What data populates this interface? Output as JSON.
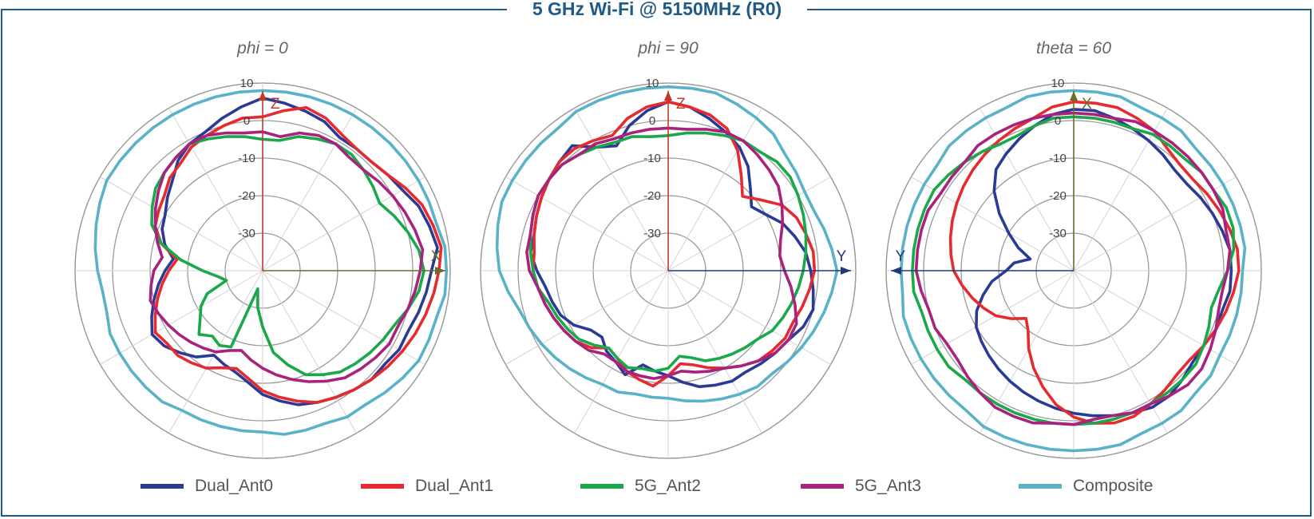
{
  "title": "5 GHz Wi-Fi @ 5150MHz (R0)",
  "legend": [
    {
      "name": "Dual_Ant0",
      "color": "#2b3b93"
    },
    {
      "name": "Dual_Ant1",
      "color": "#e52b2f"
    },
    {
      "name": "5G_Ant2",
      "color": "#1aa84a"
    },
    {
      "name": "5G_Ant3",
      "color": "#a8237e"
    },
    {
      "name": "Composite",
      "color": "#5ab2c8"
    }
  ],
  "chart_data": [
    {
      "type": "polar",
      "title": "phi = 0",
      "r_range": [
        -40,
        10
      ],
      "r_ticks": [
        10,
        0,
        -10,
        -20,
        -30
      ],
      "angle_step_deg": 30,
      "axis_up_label": "Z",
      "axis_side_label": "X",
      "axis_side": "right",
      "axis_color": "#c0392b",
      "axis_side_color": "#6b6b2b",
      "series": [
        {
          "name": "Dual_Ant0",
          "values": [
            6,
            5,
            4,
            3,
            1,
            1,
            1,
            2,
            3,
            5,
            6,
            7,
            5,
            4,
            3,
            2,
            2,
            1,
            1,
            0,
            -1,
            -2,
            -3,
            -5,
            -7,
            -10,
            -12,
            -13,
            -14,
            -11,
            -9,
            -7,
            -6,
            -8,
            -10,
            -12,
            -14,
            -16,
            -13,
            -11,
            -10,
            -8,
            -6,
            -3,
            -1,
            0,
            2,
            4
          ]
        },
        {
          "name": "Dual_Ant1",
          "values": [
            1,
            3,
            5,
            4,
            2,
            1,
            1,
            2,
            4,
            6,
            7,
            8,
            7,
            6,
            5,
            4,
            3,
            2,
            1,
            0,
            -1,
            -2,
            -4,
            -6,
            -8,
            -11,
            -13,
            -12,
            -10,
            -9,
            -8,
            -8,
            -7,
            -9,
            -11,
            -13,
            -15,
            -17,
            -12,
            -9,
            -8,
            -7,
            -5,
            -4,
            -2,
            -1,
            0,
            1
          ]
        },
        {
          "name": "5G_Ant2",
          "values": [
            -5,
            -5,
            -3,
            -2,
            -1,
            -1,
            -2,
            -3,
            -4,
            -2,
            0,
            2,
            3,
            2,
            0,
            -2,
            -3,
            -4,
            -5,
            -6,
            -8,
            -10,
            -14,
            -18,
            -25,
            -30,
            -35,
            -18,
            -17,
            -18,
            -16,
            -19,
            -21,
            -24,
            -30,
            -28,
            -24,
            -18,
            -12,
            -8,
            -6,
            -4,
            -3,
            -2,
            -1,
            -2,
            -3,
            -4
          ]
        },
        {
          "name": "5G_Ant3",
          "values": [
            -3,
            -4,
            -2,
            -1,
            -1,
            -2,
            -2,
            -1,
            0,
            1,
            2,
            3,
            2,
            1,
            0,
            -1,
            -1,
            -2,
            -3,
            -4,
            -6,
            -8,
            -10,
            -12,
            -14,
            -16,
            -18,
            -17,
            -15,
            -14,
            -13,
            -12,
            -11,
            -10,
            -9,
            -10,
            -11,
            -13,
            -11,
            -9,
            -7,
            -5,
            -3,
            -2,
            -1,
            -1,
            -2,
            -3
          ]
        },
        {
          "name": "Composite",
          "values": [
            8,
            8,
            8,
            8,
            8,
            8,
            8,
            8,
            8,
            8,
            8,
            9,
            9,
            9,
            8,
            8,
            8,
            7,
            6,
            5,
            5,
            4,
            4,
            4,
            3,
            3,
            3,
            3,
            3,
            4,
            4,
            4,
            4,
            4,
            3,
            3,
            4,
            5,
            6,
            7,
            8,
            8,
            8,
            8,
            8,
            8,
            8,
            8
          ]
        }
      ]
    },
    {
      "type": "polar",
      "title": "phi = 90",
      "r_range": [
        -40,
        10
      ],
      "r_ticks": [
        10,
        0,
        -10,
        -20,
        -30
      ],
      "angle_step_deg": 30,
      "axis_up_label": "Z",
      "axis_side_label": "Y",
      "axis_side": "right",
      "axis_color": "#c0392b",
      "axis_side_color": "#1f3b7a",
      "series": [
        {
          "name": "Dual_Ant0",
          "values": [
            5,
            4,
            2,
            0,
            -2,
            -5,
            -9,
            -12,
            -10,
            -7,
            -5,
            -3,
            -2,
            -1,
            0,
            -1,
            -3,
            -4,
            -5,
            -6,
            -6,
            -7,
            -8,
            -10,
            -12,
            -13,
            -14,
            -10,
            -12,
            -13,
            -15,
            -14,
            -11,
            -9,
            -8,
            -7,
            -5,
            -3,
            -3,
            -2,
            -1,
            0,
            1,
            2,
            -2,
            -4,
            0,
            3
          ]
        },
        {
          "name": "Dual_Ant1",
          "values": [
            5,
            4,
            3,
            1,
            -3,
            -8,
            -12,
            -9,
            -5,
            -3,
            -2,
            -1,
            -1,
            -2,
            -3,
            -4,
            -4,
            -5,
            -6,
            -8,
            -10,
            -12,
            -14,
            -15,
            -12,
            -9,
            -10,
            -11,
            -13,
            -14,
            -11,
            -9,
            -8,
            -7,
            -6,
            -5,
            -4,
            -4,
            -3,
            -2,
            -1,
            0,
            1,
            1,
            0,
            -1,
            2,
            4
          ]
        },
        {
          "name": "5G_Ant2",
          "values": [
            -4,
            -3,
            -2,
            -1,
            0,
            0,
            1,
            1,
            0,
            -1,
            -2,
            -3,
            -4,
            -5,
            -6,
            -7,
            -8,
            -10,
            -11,
            -12,
            -13,
            -14,
            -16,
            -17,
            -14,
            -13,
            -13,
            -12,
            -13,
            -14,
            -12,
            -10,
            -9,
            -8,
            -7,
            -5,
            -4,
            -3,
            -2,
            -1,
            0,
            0,
            0,
            -1,
            -2,
            -3,
            -3,
            -4
          ]
        },
        {
          "name": "5G_Ant3",
          "values": [
            -2,
            -2,
            -1,
            0,
            0,
            -1,
            -2,
            -3,
            -5,
            -7,
            -9,
            -10,
            -9,
            -7,
            -5,
            -3,
            -3,
            -4,
            -6,
            -8,
            -10,
            -11,
            -12,
            -13,
            -12,
            -11,
            -11,
            -11,
            -12,
            -12,
            -10,
            -9,
            -8,
            -7,
            -6,
            -5,
            -3,
            -2,
            -2,
            -1,
            0,
            0,
            0,
            -1,
            -1,
            -2,
            -2,
            -2
          ]
        },
        {
          "name": "Composite",
          "values": [
            9,
            9,
            9,
            8,
            7,
            6,
            4,
            3,
            2,
            2,
            3,
            4,
            5,
            4,
            3,
            2,
            1,
            0,
            -1,
            -1,
            -2,
            -3,
            -4,
            -5,
            -6,
            -6,
            -6,
            -5,
            -5,
            -4,
            -3,
            -2,
            -1,
            0,
            1,
            3,
            5,
            6,
            7,
            8,
            8,
            8,
            8,
            8,
            9,
            9,
            9,
            9
          ]
        }
      ]
    },
    {
      "type": "polar",
      "title": "theta = 60",
      "r_range": [
        -40,
        10
      ],
      "r_ticks": [
        10,
        0,
        -10,
        -20,
        -30
      ],
      "angle_step_deg": 30,
      "axis_up_label": "X",
      "axis_side_label": "Y",
      "axis_side": "left",
      "axis_color": "#6b6b2b",
      "axis_side_color": "#1f3b7a",
      "series": [
        {
          "name": "Dual_Ant0",
          "values": [
            3,
            3,
            2,
            1,
            0,
            -1,
            -2,
            -2,
            -1,
            0,
            1,
            2,
            2,
            2,
            1,
            1,
            0,
            0,
            1,
            2,
            2,
            1,
            0,
            -1,
            -2,
            -3,
            -4,
            -5,
            -6,
            -7,
            -8,
            -9,
            -10,
            -12,
            -15,
            -18,
            -22,
            -24,
            -28,
            -24,
            -20,
            -15,
            -10,
            -6,
            -4,
            -2,
            0,
            2
          ]
        },
        {
          "name": "Dual_Ant1",
          "values": [
            5,
            5,
            5,
            4,
            3,
            1,
            0,
            0,
            1,
            2,
            3,
            4,
            4,
            3,
            2,
            1,
            0,
            -1,
            -1,
            0,
            1,
            2,
            2,
            1,
            -1,
            -4,
            -8,
            -12,
            -16,
            -20,
            -22,
            -19,
            -16,
            -14,
            -12,
            -10,
            -8,
            -7,
            -6,
            -5,
            -4,
            -3,
            -2,
            -1,
            0,
            1,
            2,
            4
          ]
        },
        {
          "name": "5G_Ant2",
          "values": [
            1,
            1,
            1,
            1,
            2,
            2,
            2,
            3,
            3,
            4,
            4,
            3,
            1,
            -1,
            -2,
            -1,
            0,
            1,
            1,
            1,
            1,
            1,
            1,
            1,
            1,
            1,
            1,
            1,
            1,
            1,
            1,
            2,
            2,
            2,
            2,
            3,
            3,
            3,
            3,
            3,
            3,
            2,
            1,
            0,
            -1,
            -1,
            0,
            1
          ]
        },
        {
          "name": "5G_Ant3",
          "values": [
            2,
            2,
            2,
            3,
            3,
            3,
            3,
            3,
            3,
            3,
            2,
            2,
            1,
            0,
            0,
            1,
            2,
            3,
            3,
            2,
            1,
            1,
            0,
            0,
            1,
            1,
            2,
            2,
            2,
            1,
            0,
            -1,
            -1,
            0,
            0,
            1,
            2,
            2,
            2,
            2,
            1,
            1,
            1,
            2,
            2,
            2,
            2,
            2
          ]
        },
        {
          "name": "Composite",
          "values": [
            8,
            8,
            8,
            7,
            7,
            7,
            6,
            6,
            6,
            6,
            6,
            6,
            5,
            5,
            5,
            5,
            5,
            6,
            6,
            7,
            7,
            7,
            8,
            8,
            8,
            8,
            8,
            8,
            8,
            7,
            7,
            7,
            7,
            7,
            7,
            6,
            6,
            6,
            6,
            6,
            6,
            6,
            7,
            7,
            7,
            7,
            8,
            8
          ]
        }
      ]
    }
  ]
}
